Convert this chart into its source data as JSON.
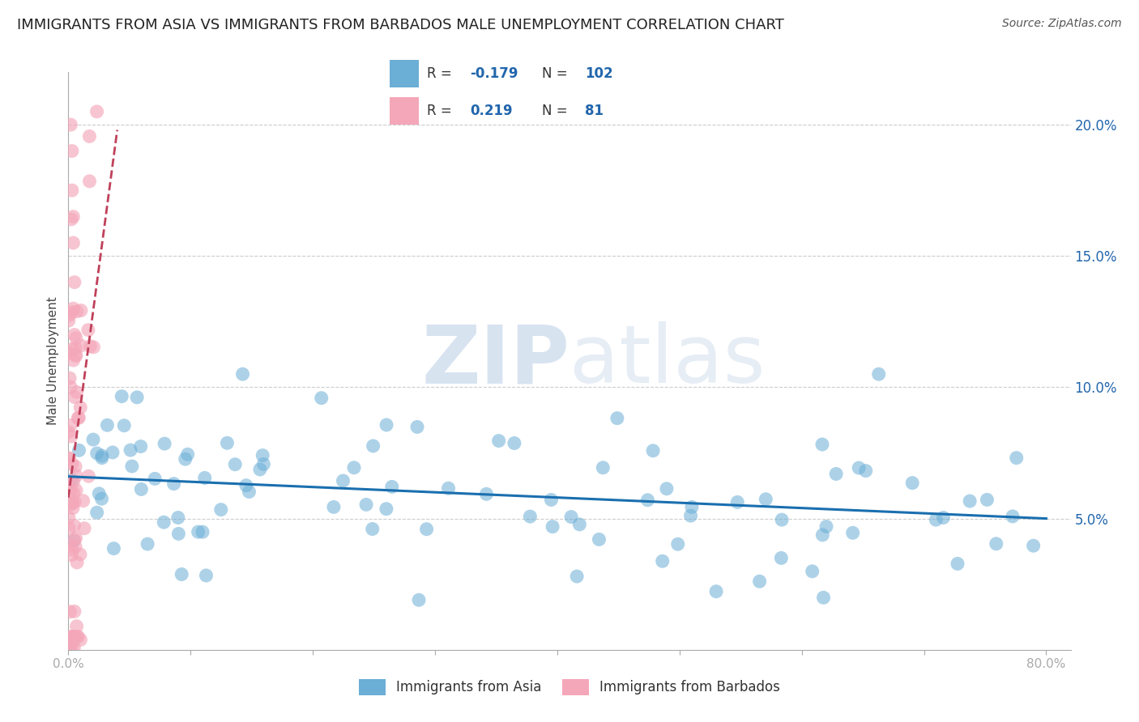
{
  "title": "IMMIGRANTS FROM ASIA VS IMMIGRANTS FROM BARBADOS MALE UNEMPLOYMENT CORRELATION CHART",
  "source": "Source: ZipAtlas.com",
  "ylabel": "Male Unemployment",
  "watermark": "ZIPatlas",
  "legend_asia_R": -0.179,
  "legend_asia_N": 102,
  "legend_barbados_R": 0.219,
  "legend_barbados_N": 81,
  "legend_asia_label": "Immigrants from Asia",
  "legend_barbados_label": "Immigrants from Barbados",
  "color_asia": "#6baed6",
  "color_barbados": "#f4a7b9",
  "color_blue_text": "#2166ac",
  "color_trend_asia": "#1a6faf",
  "color_trend_barbados": "#c0405a",
  "ylim_min": 0.0,
  "ylim_max": 0.22,
  "xlim_min": 0.0,
  "xlim_max": 0.82,
  "yticks": [
    0.05,
    0.1,
    0.15,
    0.2
  ],
  "ytick_labels": [
    "5.0%",
    "10.0%",
    "15.0%",
    "20.0%"
  ],
  "gridline_color": "#cccccc",
  "title_fontsize": 13,
  "source_fontsize": 10,
  "axis_label_fontsize": 11
}
